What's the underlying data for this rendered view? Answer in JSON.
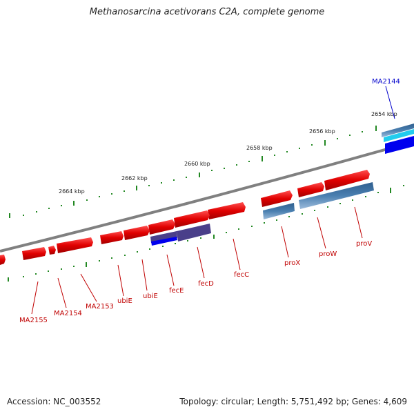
{
  "title": "Methanosarcina acetivorans C2A, complete genome",
  "footer": {
    "accession": "Accession: NC_003552",
    "info": "Topology: circular; Length: 5,751,492 bp; Genes: 4,609"
  },
  "scale_labels": [
    "2654 kbp",
    "2656 kbp",
    "2658 kbp",
    "2660 kbp",
    "2662 kbp",
    "2664 kbp"
  ],
  "gene_labels": {
    "MA2144": "MA2144",
    "proV": "proV",
    "proW": "proW",
    "proX": "proX",
    "fecC": "fecC",
    "fecD": "fecD",
    "fecE": "fecE",
    "ubiE_1": "ubiE",
    "ubiE_2": "ubiE",
    "MA2153": "MA2153",
    "MA2154": "MA2154",
    "MA2155": "MA2155"
  },
  "colors": {
    "gene_forward": "#e00000",
    "gene_transport": "#4a7fb0",
    "gene_blue": "#0000ee",
    "gene_purple": "#4a3f8a",
    "gene_cyan": "#22ccee",
    "backbone": "#808080",
    "tick": "#228822",
    "label_red": "#c00000",
    "label_blue": "#0000cc"
  }
}
